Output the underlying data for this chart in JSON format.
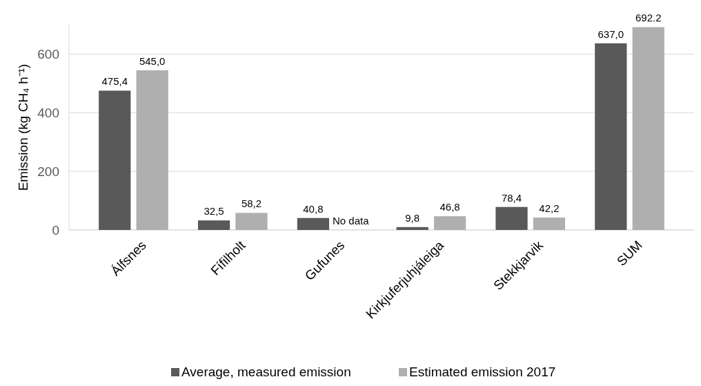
{
  "chart_data": {
    "type": "bar",
    "ylabel": "Emission (kg CH₄ h⁻¹)",
    "categories": [
      "Álfsnes",
      "Fífilholt",
      "Gufunes",
      "Kirkjuferjuhjáleiga",
      "Stekkjarvik",
      "SUM"
    ],
    "series": [
      {
        "name": "Average, measured emission",
        "color": "#595959",
        "values": [
          475.4,
          32.5,
          40.8,
          9.8,
          78.4,
          637.0
        ],
        "value_labels": [
          "475,4",
          "32,5",
          "40,8",
          "9,8",
          "78,4",
          "637,0"
        ]
      },
      {
        "name": "Estimated emission 2017",
        "color": "#afafaf",
        "values": [
          545.0,
          58.2,
          null,
          46.8,
          42.2,
          692.2
        ],
        "value_labels": [
          "545,0",
          "58,2",
          "No data",
          "46,8",
          "42,2",
          "692.2"
        ]
      }
    ],
    "ylim": [
      0,
      700
    ],
    "yticks": [
      0,
      200,
      400,
      600
    ],
    "grid": "y",
    "legend": "bottom"
  }
}
